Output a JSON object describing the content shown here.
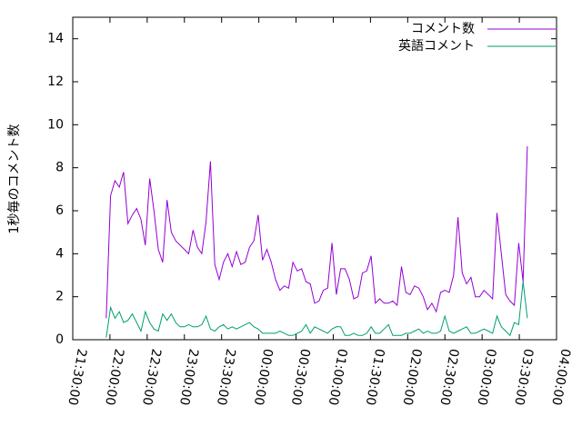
{
  "chart_data": {
    "type": "line",
    "ylabel": "1秒毎のコメント数",
    "x": [
      "21:57:00",
      "22:00:30",
      "22:04:00",
      "22:07:30",
      "22:11:00",
      "22:14:30",
      "22:18:00",
      "22:21:30",
      "22:25:00",
      "22:28:30",
      "22:32:00",
      "22:35:30",
      "22:39:00",
      "22:42:30",
      "22:46:00",
      "22:49:30",
      "22:53:00",
      "22:56:30",
      "23:00:00",
      "23:03:30",
      "23:07:00",
      "23:10:30",
      "23:14:00",
      "23:17:30",
      "23:21:00",
      "23:24:30",
      "23:28:00",
      "23:31:30",
      "23:35:00",
      "23:38:30",
      "23:42:00",
      "23:45:30",
      "23:49:00",
      "23:52:30",
      "23:56:00",
      "23:59:30",
      "00:03:00",
      "00:06:30",
      "00:10:00",
      "00:13:30",
      "00:17:00",
      "00:20:30",
      "00:24:00",
      "00:27:30",
      "00:31:00",
      "00:34:30",
      "00:38:00",
      "00:41:30",
      "00:45:00",
      "00:48:30",
      "00:52:00",
      "00:55:30",
      "00:59:00",
      "01:02:30",
      "01:06:00",
      "01:09:30",
      "01:13:00",
      "01:16:30",
      "01:20:00",
      "01:23:30",
      "01:27:00",
      "01:30:30",
      "01:34:00",
      "01:37:30",
      "01:41:00",
      "01:44:30",
      "01:48:00",
      "01:51:30",
      "01:55:00",
      "01:58:30",
      "02:02:00",
      "02:05:30",
      "02:09:00",
      "02:12:30",
      "02:16:00",
      "02:19:30",
      "02:23:00",
      "02:26:30",
      "02:30:00",
      "02:33:30",
      "02:37:00",
      "02:40:30",
      "02:44:00",
      "02:47:30",
      "02:51:00",
      "02:54:30",
      "02:58:00",
      "03:01:30",
      "03:05:00",
      "03:08:30",
      "03:12:00",
      "03:15:30",
      "03:19:00",
      "03:22:30",
      "03:26:00",
      "03:29:30",
      "03:33:00",
      "03:36:30"
    ],
    "series": [
      {
        "name": "コメント数",
        "color": "#9400d3",
        "values": [
          1.0,
          6.7,
          7.4,
          7.1,
          7.8,
          5.4,
          5.8,
          6.1,
          5.6,
          4.4,
          7.5,
          6.0,
          4.2,
          3.6,
          6.5,
          5.0,
          4.6,
          4.4,
          4.2,
          4.0,
          5.1,
          4.3,
          4.0,
          5.5,
          8.3,
          3.5,
          2.8,
          3.6,
          4.0,
          3.4,
          4.1,
          3.5,
          3.6,
          4.3,
          4.6,
          5.8,
          3.7,
          4.2,
          3.6,
          2.8,
          2.3,
          2.5,
          2.4,
          3.6,
          3.2,
          3.3,
          2.7,
          2.6,
          1.7,
          1.8,
          2.3,
          2.4,
          4.5,
          2.1,
          3.3,
          3.3,
          2.8,
          1.9,
          2.0,
          3.1,
          3.2,
          3.9,
          1.7,
          1.9,
          1.7,
          1.7,
          1.8,
          1.6,
          3.4,
          2.2,
          2.1,
          2.5,
          2.4,
          2.0,
          1.4,
          1.7,
          1.3,
          2.2,
          2.3,
          2.2,
          3.0,
          5.7,
          3.1,
          2.6,
          2.9,
          2.0,
          2.0,
          2.3,
          2.1,
          1.9,
          5.9,
          4.0,
          2.1,
          1.8,
          1.6,
          4.5,
          2.7,
          9.0
        ]
      },
      {
        "name": "英語コメント",
        "color": "#009e73",
        "values": [
          0.1,
          1.5,
          1.0,
          1.3,
          0.8,
          0.9,
          1.2,
          0.8,
          0.4,
          1.3,
          0.8,
          0.5,
          0.4,
          1.2,
          0.9,
          1.2,
          0.8,
          0.6,
          0.6,
          0.7,
          0.6,
          0.6,
          0.7,
          1.1,
          0.5,
          0.4,
          0.6,
          0.7,
          0.5,
          0.6,
          0.5,
          0.6,
          0.7,
          0.8,
          0.6,
          0.5,
          0.3,
          0.3,
          0.3,
          0.3,
          0.4,
          0.3,
          0.2,
          0.2,
          0.3,
          0.4,
          0.7,
          0.3,
          0.6,
          0.5,
          0.4,
          0.3,
          0.5,
          0.6,
          0.6,
          0.2,
          0.2,
          0.3,
          0.2,
          0.2,
          0.3,
          0.6,
          0.3,
          0.3,
          0.5,
          0.7,
          0.2,
          0.2,
          0.2,
          0.3,
          0.3,
          0.4,
          0.5,
          0.3,
          0.4,
          0.3,
          0.3,
          0.4,
          1.1,
          0.4,
          0.3,
          0.4,
          0.5,
          0.6,
          0.3,
          0.3,
          0.4,
          0.5,
          0.4,
          0.3,
          1.1,
          0.6,
          0.4,
          0.2,
          0.8,
          0.7,
          2.7,
          1.0
        ]
      }
    ],
    "xlim": [
      "21:30:00",
      "04:00:00"
    ],
    "xticks": [
      "21:30:00",
      "22:00:00",
      "22:30:00",
      "23:00:00",
      "23:30:00",
      "00:00:00",
      "00:30:00",
      "01:00:00",
      "01:30:00",
      "02:00:00",
      "02:30:00",
      "03:00:00",
      "03:30:00",
      "04:00:00"
    ],
    "ylim": [
      0,
      15
    ],
    "yticks": [
      0,
      2,
      4,
      6,
      8,
      10,
      12,
      14
    ],
    "legend": "top-right"
  }
}
